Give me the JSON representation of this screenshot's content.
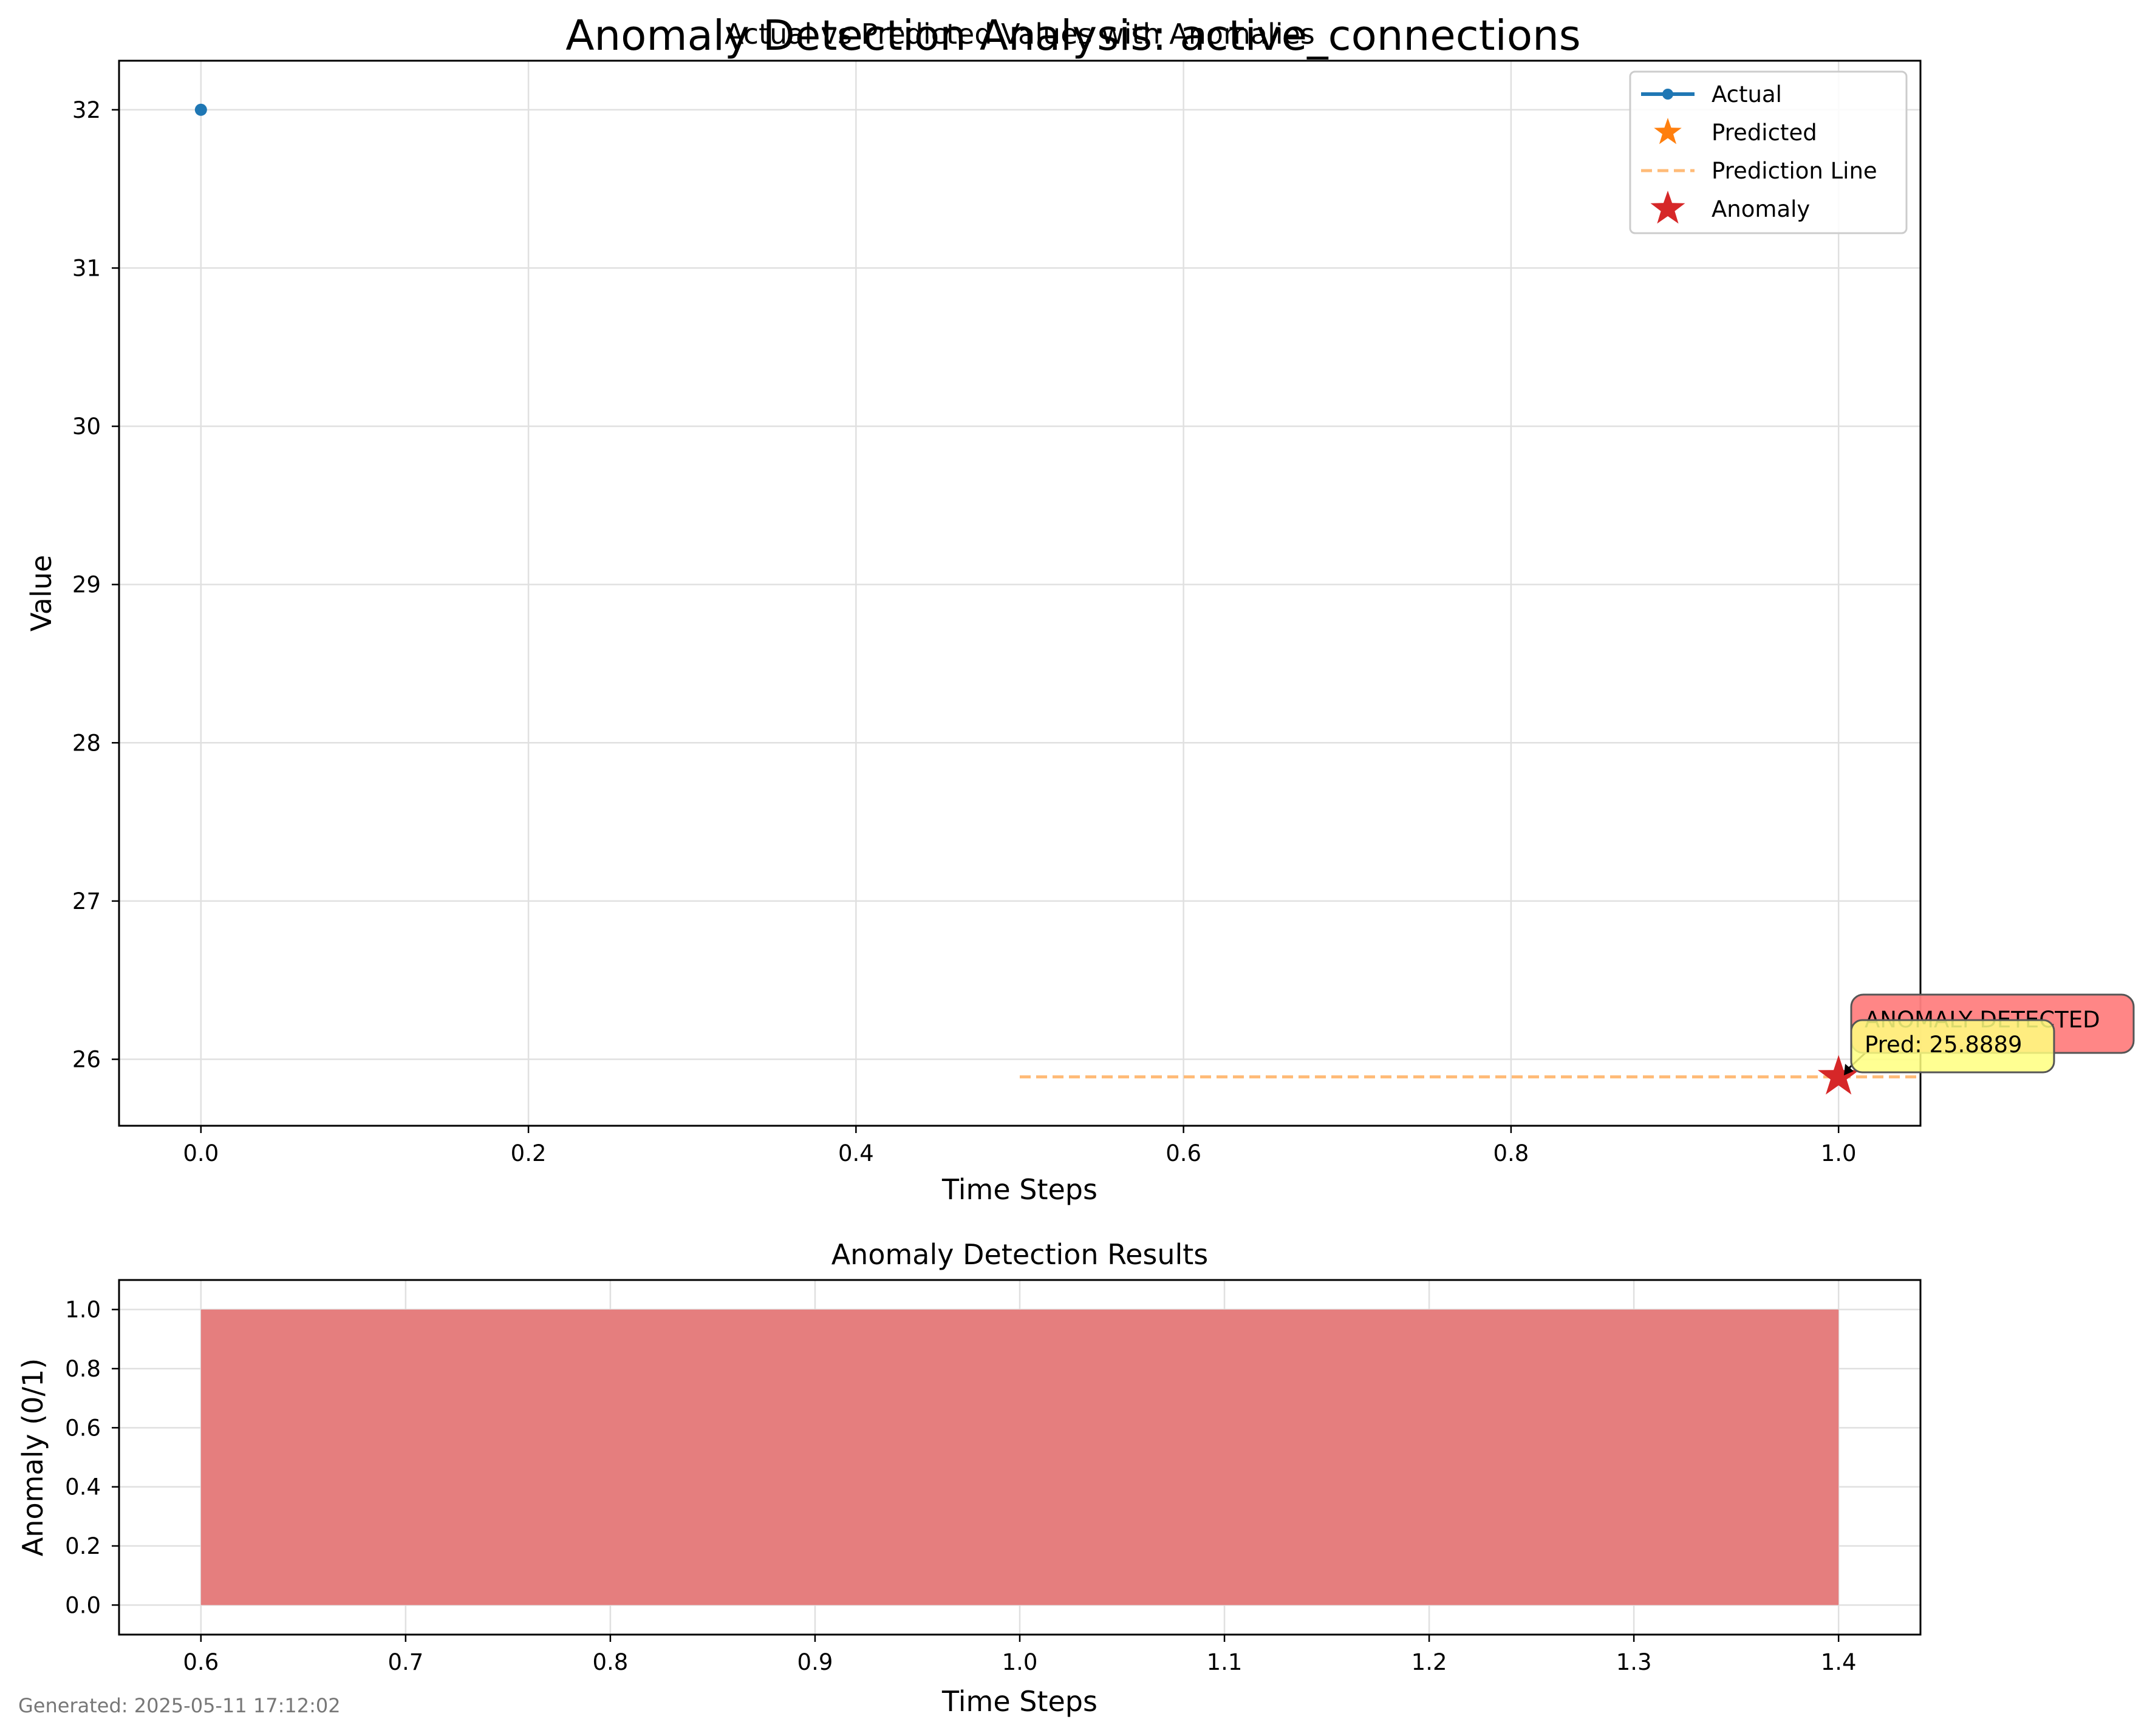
{
  "figure": {
    "suptitle": "Anomaly Detection Analysis: active_connections",
    "footer": "Generated: 2025-05-11 17:12:02"
  },
  "colors": {
    "actual": "#1f77b4",
    "predicted": "#ff7f0e",
    "prediction_line": "#ffbb78",
    "anomaly": "#d62728",
    "anomaly_bar": "#e57e7e",
    "grid": "#e0e0e0",
    "annot_anomaly_box": "#ff7f7f",
    "annot_pred_box": "#ffff7f"
  },
  "chart_data": [
    {
      "type": "line",
      "title": "Actual vs Predicted Values with Anomalies",
      "xlabel": "Time Steps",
      "ylabel": "Value",
      "xlim": [
        -0.05,
        1.05
      ],
      "ylim": [
        25.58,
        32.31
      ],
      "xticks": [
        0.0,
        0.2,
        0.4,
        0.6,
        0.8,
        1.0
      ],
      "xtick_labels": [
        "0.0",
        "0.2",
        "0.4",
        "0.6",
        "0.8",
        "1.0"
      ],
      "yticks": [
        26,
        27,
        28,
        29,
        30,
        31,
        32
      ],
      "ytick_labels": [
        "26",
        "27",
        "28",
        "29",
        "30",
        "31",
        "32"
      ],
      "grid": true,
      "legend_position": "top-right",
      "series": [
        {
          "name": "Actual",
          "kind": "line-marker",
          "x": [
            0
          ],
          "y": [
            32
          ]
        },
        {
          "name": "Predicted",
          "kind": "star",
          "x": [
            1
          ],
          "y": [
            25.8889
          ]
        },
        {
          "name": "Prediction Line",
          "kind": "dashed",
          "x": [
            0.5,
            1.05
          ],
          "y": [
            25.8889,
            25.8889
          ]
        },
        {
          "name": "Anomaly",
          "kind": "star-large",
          "x": [
            1
          ],
          "y": [
            25.8889
          ]
        }
      ],
      "annotations": [
        {
          "text": "ANOMALY DETECTED",
          "x": 1,
          "y": 25.8889,
          "style": "anomaly"
        },
        {
          "text": "Pred: 25.8889",
          "x": 1,
          "y": 25.8889,
          "style": "prediction"
        }
      ]
    },
    {
      "type": "bar",
      "title": "Anomaly Detection Results",
      "xlabel": "Time Steps",
      "ylabel": "Anomaly (0/1)",
      "xlim": [
        0.56,
        1.44
      ],
      "ylim": [
        -0.1,
        1.1
      ],
      "xticks": [
        0.6,
        0.7,
        0.8,
        0.9,
        1.0,
        1.1,
        1.2,
        1.3,
        1.4
      ],
      "xtick_labels": [
        "0.6",
        "0.7",
        "0.8",
        "0.9",
        "1.0",
        "1.1",
        "1.2",
        "1.3",
        "1.4"
      ],
      "yticks": [
        0.0,
        0.2,
        0.4,
        0.6,
        0.8,
        1.0
      ],
      "ytick_labels": [
        "0.0",
        "0.2",
        "0.4",
        "0.6",
        "0.8",
        "1.0"
      ],
      "grid": true,
      "bars": [
        {
          "x": 1.0,
          "width": 0.8,
          "value": 1
        }
      ]
    }
  ]
}
